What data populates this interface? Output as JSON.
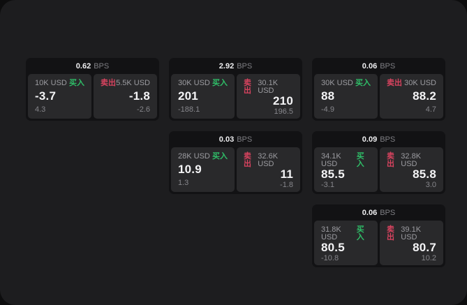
{
  "labels": {
    "bps_unit": "BPS",
    "buy": "买入",
    "sell": "卖出"
  },
  "colors": {
    "buy_green": "#2fbe68",
    "sell_red": "#d8435f",
    "surface": "#1d1d1f",
    "card_bg": "#121214",
    "panel_bg": "#29292b",
    "outer_bg": "#0d0d0e"
  },
  "cards": [
    {
      "bps": "0.62",
      "buy": {
        "amount": "10K USD",
        "price": "-3.7",
        "delta": "4.3"
      },
      "sell": {
        "amount": "5.5K USD",
        "price": "-1.8",
        "delta": "-2.6"
      }
    },
    {
      "bps": "2.92",
      "buy": {
        "amount": "30K USD",
        "price": "201",
        "delta": "-188.1"
      },
      "sell": {
        "amount": "30.1K USD",
        "price": "210",
        "delta": "196.5"
      }
    },
    {
      "bps": "0.06",
      "buy": {
        "amount": "30K USD",
        "price": "88",
        "delta": "-4.9"
      },
      "sell": {
        "amount": "30K USD",
        "price": "88.2",
        "delta": "4.7"
      }
    },
    {
      "bps": "0.03",
      "buy": {
        "amount": "28K USD",
        "price": "10.9",
        "delta": "1.3"
      },
      "sell": {
        "amount": "32.6K USD",
        "price": "11",
        "delta": "-1.8"
      }
    },
    {
      "bps": "0.09",
      "buy": {
        "amount": "34.1K USD",
        "price": "85.5",
        "delta": "-3.1"
      },
      "sell": {
        "amount": "32.8K USD",
        "price": "85.8",
        "delta": "3.0"
      }
    },
    {
      "bps": "0.06",
      "buy": {
        "amount": "31.8K USD",
        "price": "80.5",
        "delta": "-10.8"
      },
      "sell": {
        "amount": "39.1K USD",
        "price": "80.7",
        "delta": "10.2"
      }
    }
  ]
}
